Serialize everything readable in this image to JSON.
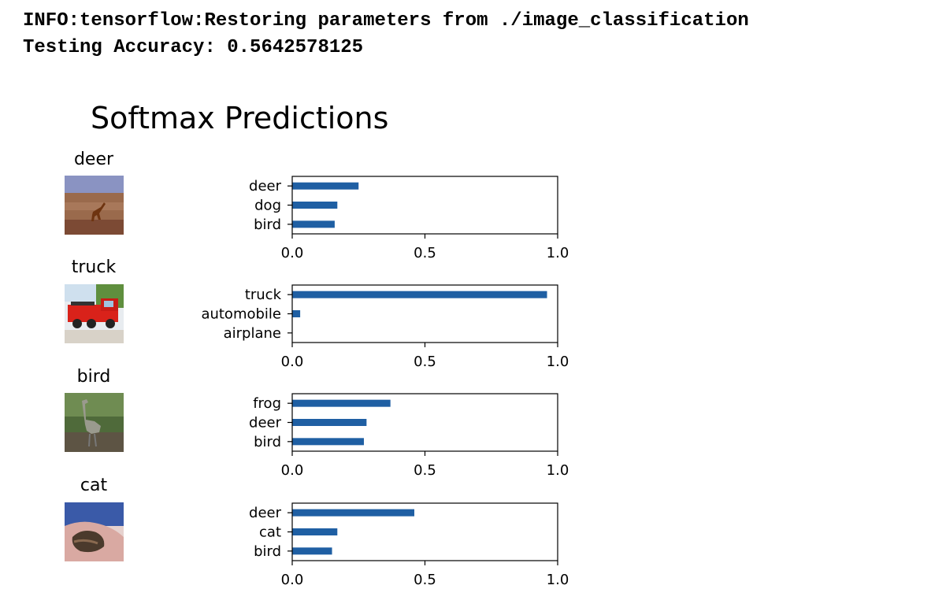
{
  "log": {
    "line1": "INFO:tensorflow:Restoring parameters from ./image_classification",
    "line2": "Testing Accuracy: 0.5642578125"
  },
  "figure": {
    "title": "Softmax Predictions",
    "bar_color": "#1f5fa3"
  },
  "samples": [
    {
      "label": "deer",
      "icon": "deer-photo"
    },
    {
      "label": "truck",
      "icon": "truck-photo"
    },
    {
      "label": "bird",
      "icon": "bird-photo"
    },
    {
      "label": "cat",
      "icon": "cat-photo"
    }
  ],
  "chart_data": [
    {
      "type": "bar",
      "orientation": "horizontal",
      "categories": [
        "deer",
        "dog",
        "bird"
      ],
      "values": [
        0.25,
        0.17,
        0.16
      ],
      "xlim": [
        0.0,
        1.0
      ],
      "xticks": [
        "0.0",
        "0.5",
        "1.0"
      ]
    },
    {
      "type": "bar",
      "orientation": "horizontal",
      "categories": [
        "truck",
        "automobile",
        "airplane"
      ],
      "values": [
        0.96,
        0.03,
        0.0
      ],
      "xlim": [
        0.0,
        1.0
      ],
      "xticks": [
        "0.0",
        "0.5",
        "1.0"
      ]
    },
    {
      "type": "bar",
      "orientation": "horizontal",
      "categories": [
        "frog",
        "deer",
        "bird"
      ],
      "values": [
        0.37,
        0.28,
        0.27
      ],
      "xlim": [
        0.0,
        1.0
      ],
      "xticks": [
        "0.0",
        "0.5",
        "1.0"
      ]
    },
    {
      "type": "bar",
      "orientation": "horizontal",
      "categories": [
        "deer",
        "cat",
        "bird"
      ],
      "values": [
        0.46,
        0.17,
        0.15
      ],
      "xlim": [
        0.0,
        1.0
      ],
      "xticks": [
        "0.0",
        "0.5",
        "1.0"
      ]
    }
  ]
}
